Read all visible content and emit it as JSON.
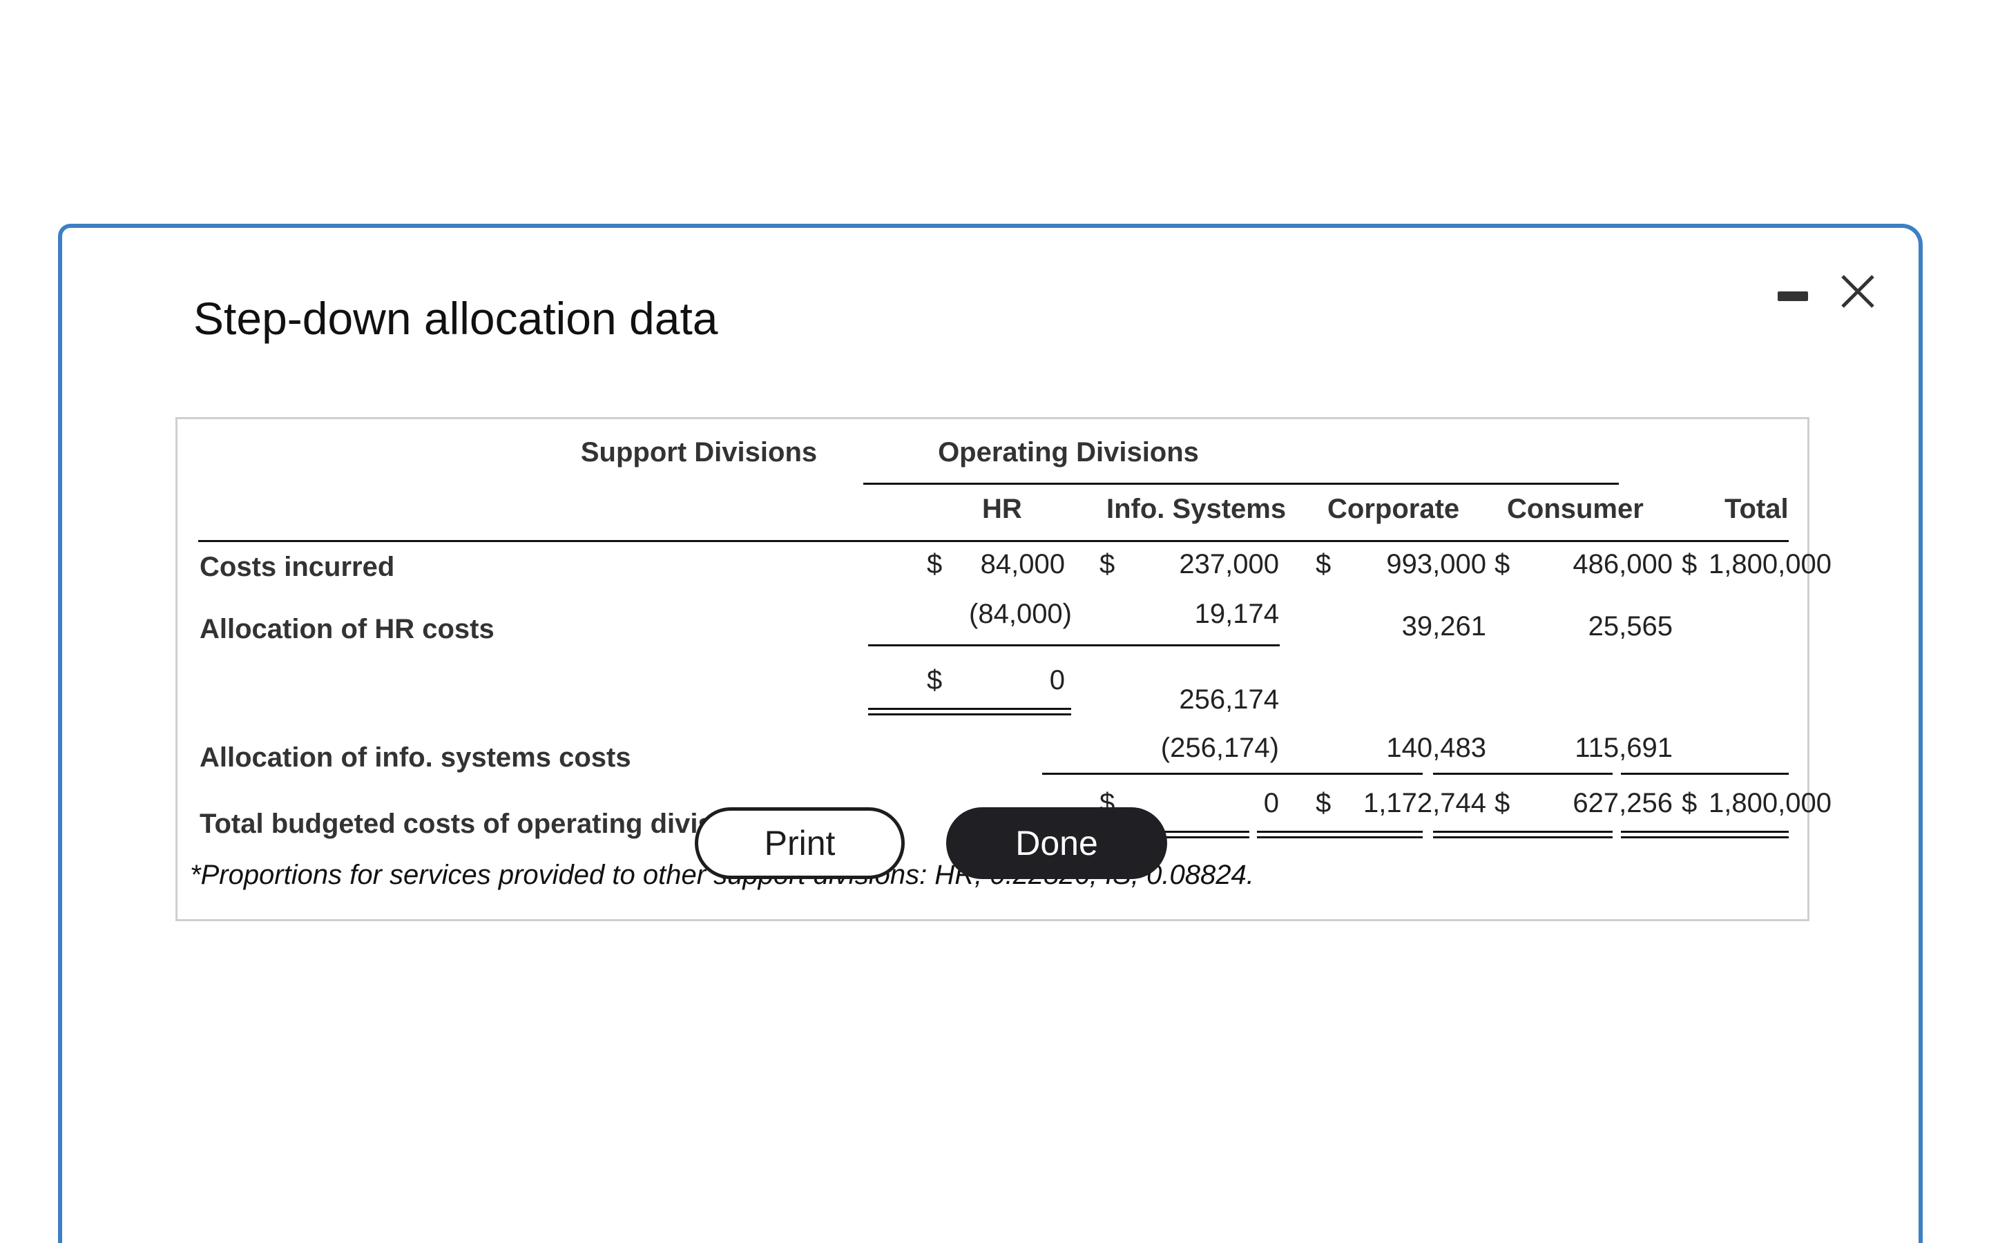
{
  "dialog": {
    "title": "Step-down allocation data",
    "accent_color": "#3d7fc4"
  },
  "table": {
    "group_headers": [
      "Support Divisions",
      "Operating Divisions"
    ],
    "columns": [
      "HR",
      "Info. Systems",
      "Corporate",
      "Consumer",
      "Total"
    ],
    "rows": {
      "costs_incurred": {
        "label": "Costs incurred",
        "hr": "84,000",
        "is": "237,000",
        "corporate": "993,000",
        "consumer": "486,000",
        "total": "1,800,000"
      },
      "allocation_hr": {
        "label": "Allocation of HR costs",
        "hr": "(84,000)",
        "is": "19,174",
        "corporate": "39,261",
        "consumer": "25,565"
      },
      "subtotal": {
        "hr": "0",
        "is": "256,174"
      },
      "allocation_is": {
        "label": "Allocation of info. systems costs",
        "is": "(256,174)",
        "corporate": "140,483",
        "consumer": "115,691"
      },
      "total_budgeted": {
        "label": "Total budgeted costs of operating divisions",
        "is": "0",
        "corporate": "1,172,744",
        "consumer": "627,256",
        "total": "1,800,000"
      }
    },
    "currency_symbol": "$",
    "footnote": "*Proportions for services provided to other support divisions: HR, 0.22826; IS, 0.08824."
  },
  "buttons": {
    "print": "Print",
    "done": "Done"
  }
}
